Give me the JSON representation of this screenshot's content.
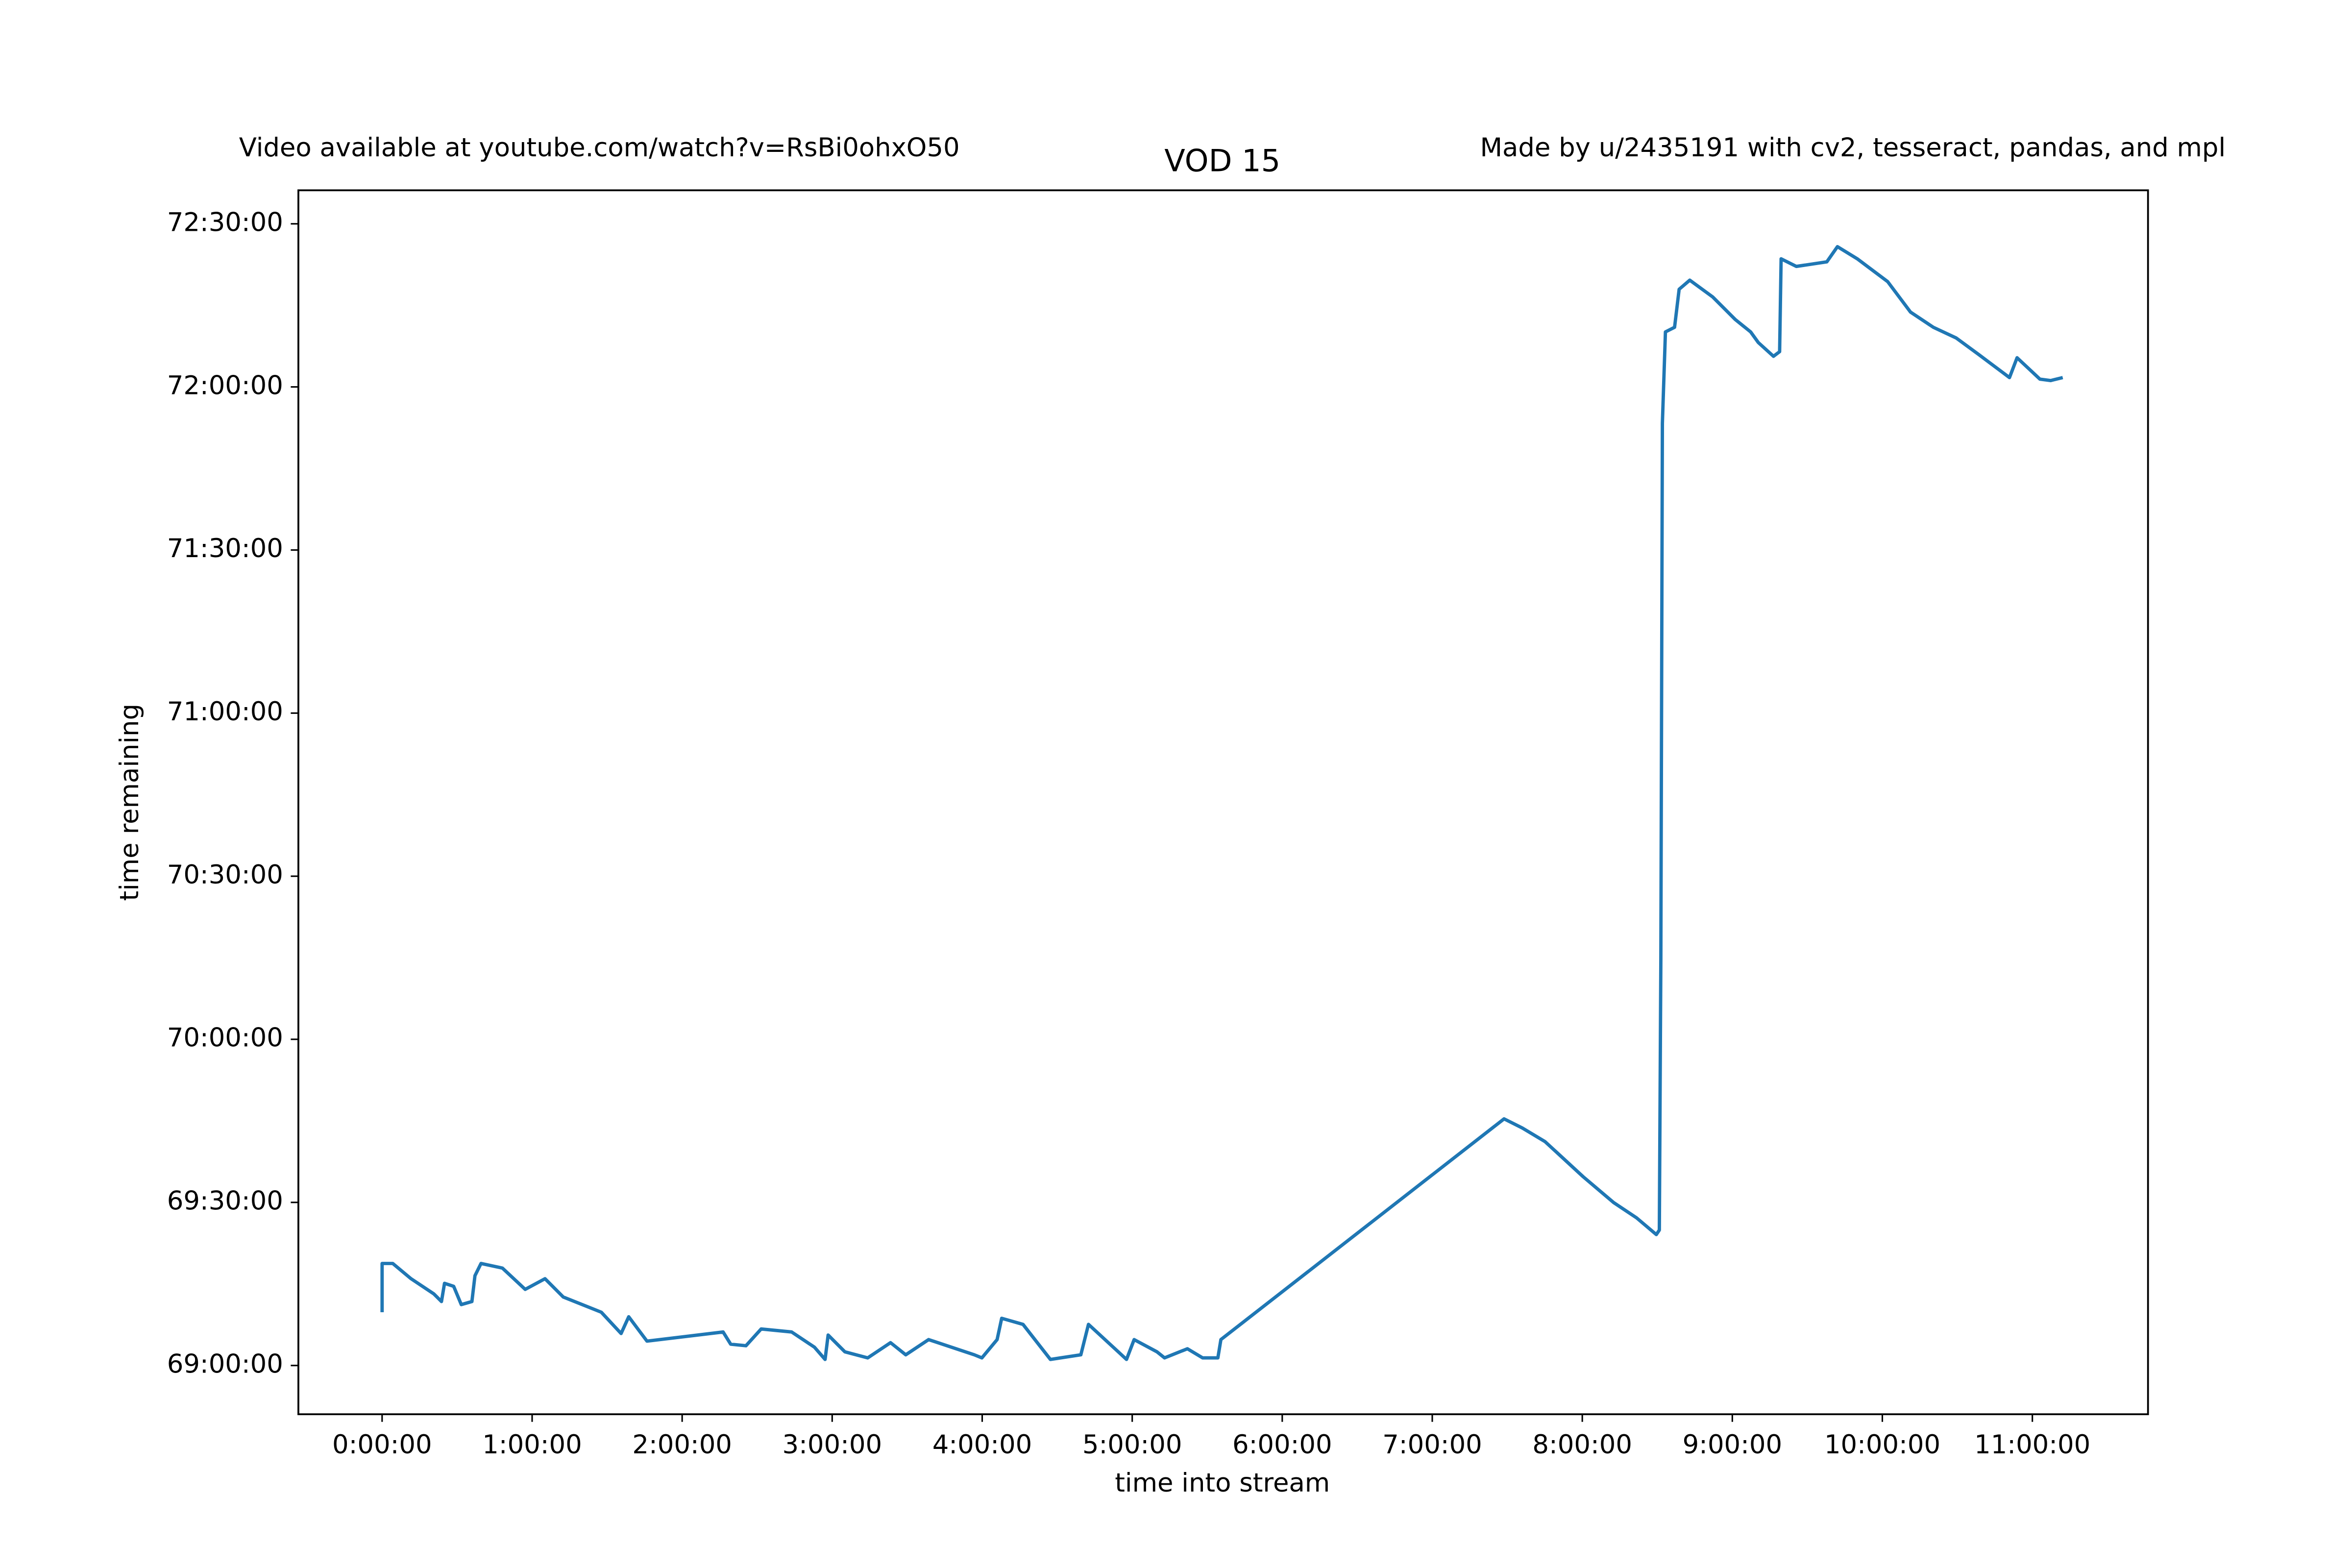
{
  "chart_data": {
    "type": "line",
    "title": "VOD 15",
    "note_left": "Video available at youtube.com/watch?v=RsBi0ohxO50",
    "note_right": "Made by u/2435191 with cv2, tesseract, pandas, and mpl",
    "x_label": "time into stream",
    "y_label": "time remaining",
    "color": "#1f77b4",
    "x": [
      0,
      0,
      256,
      694,
      1242,
      1425,
      1498,
      1717,
      1900,
      2155,
      2228,
      2374,
      2886,
      3434,
      3909,
      4347,
      5260,
      5735,
      5918,
      6356,
      8183,
      8365,
      8731,
      9096,
      9827,
      10375,
      10630,
      10703,
      11105,
      11653,
      12201,
      12566,
      13114,
      13662,
      14210,
      14393,
      14758,
      14868,
      15379,
      16037,
      16767,
      16950,
      17863,
      18046,
      18594,
      18776,
      19324,
      19690,
      20055,
      20128,
      26923,
      27361,
      27908,
      28822,
      29553,
      30101,
      30576,
      30649,
      30685,
      30722,
      30795,
      31014,
      31124,
      31379,
      31927,
      32475,
      32840,
      33023,
      33388,
      33535,
      33571,
      33936,
      34667,
      34923,
      35398,
      36128,
      36676,
      37224,
      37772,
      38320,
      39051,
      39233,
      39781,
      40037,
      40329
    ],
    "values": [
      248988,
      249526,
      249526,
      249358,
      249190,
      249106,
      249307,
      249274,
      249072,
      249106,
      249391,
      249526,
      249475,
      249240,
      249358,
      249156,
      248988,
      248753,
      248938,
      248669,
      248770,
      248635,
      248618,
      248803,
      248770,
      248602,
      248467,
      248736,
      248551,
      248484,
      248652,
      248518,
      248686,
      248602,
      248518,
      248484,
      248686,
      248921,
      248854,
      248467,
      248518,
      248854,
      248467,
      248686,
      248551,
      248484,
      248585,
      248484,
      248484,
      248686,
      251122,
      251021,
      250870,
      250483,
      250198,
      250030,
      249845,
      249895,
      252886,
      258799,
      259807,
      259858,
      260278,
      260378,
      260194,
      259942,
      259807,
      259690,
      259538,
      259589,
      260614,
      260530,
      260580,
      260748,
      260614,
      260362,
      260026,
      259858,
      259740,
      259555,
      259303,
      259522,
      259286,
      259270,
      259303
    ],
    "xlim": [
      -2009,
      42375
    ],
    "ylim": [
      247862,
      261370
    ],
    "xticks": [
      {
        "value": 0,
        "label": "0:00:00"
      },
      {
        "value": 3600,
        "label": "1:00:00"
      },
      {
        "value": 7200,
        "label": "2:00:00"
      },
      {
        "value": 10800,
        "label": "3:00:00"
      },
      {
        "value": 14400,
        "label": "4:00:00"
      },
      {
        "value": 18000,
        "label": "5:00:00"
      },
      {
        "value": 21600,
        "label": "6:00:00"
      },
      {
        "value": 25200,
        "label": "7:00:00"
      },
      {
        "value": 28800,
        "label": "8:00:00"
      },
      {
        "value": 32400,
        "label": "9:00:00"
      },
      {
        "value": 36000,
        "label": "10:00:00"
      },
      {
        "value": 39600,
        "label": "11:00:00"
      }
    ],
    "yticks": [
      {
        "value": 248400,
        "label": "69:00:00"
      },
      {
        "value": 250200,
        "label": "69:30:00"
      },
      {
        "value": 252000,
        "label": "70:00:00"
      },
      {
        "value": 253800,
        "label": "70:30:00"
      },
      {
        "value": 255600,
        "label": "71:00:00"
      },
      {
        "value": 257400,
        "label": "71:30:00"
      },
      {
        "value": 259200,
        "label": "72:00:00"
      },
      {
        "value": 261000,
        "label": "72:30:00"
      }
    ],
    "grid": false
  }
}
